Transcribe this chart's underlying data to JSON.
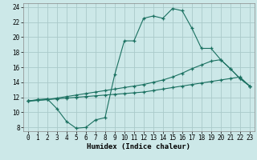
{
  "xlabel": "Humidex (Indice chaleur)",
  "bg_color": "#cce8e8",
  "grid_color": "#aacaca",
  "line_color": "#1a7060",
  "xlim": [
    -0.5,
    23.5
  ],
  "ylim": [
    7.5,
    24.5
  ],
  "xticks": [
    0,
    1,
    2,
    3,
    4,
    5,
    6,
    7,
    8,
    9,
    10,
    11,
    12,
    13,
    14,
    15,
    16,
    17,
    18,
    19,
    20,
    21,
    22,
    23
  ],
  "yticks": [
    8,
    10,
    12,
    14,
    16,
    18,
    20,
    22,
    24
  ],
  "line1_x": [
    0,
    1,
    2,
    3,
    4,
    5,
    6,
    7,
    8,
    9,
    10,
    11,
    12,
    13,
    14,
    15,
    16,
    17,
    18,
    19,
    20,
    21,
    22,
    23
  ],
  "line1_y": [
    11.5,
    11.7,
    11.8,
    10.5,
    8.8,
    7.9,
    8.0,
    9.0,
    9.3,
    15.0,
    19.5,
    19.5,
    22.5,
    22.8,
    22.5,
    23.8,
    23.5,
    21.2,
    18.5,
    18.5,
    17.0,
    15.8,
    14.5,
    13.5
  ],
  "line2_x": [
    0,
    1,
    2,
    3,
    4,
    5,
    6,
    7,
    8,
    9,
    10,
    11,
    12,
    13,
    14,
    15,
    16,
    17,
    18,
    19,
    20,
    21,
    22,
    23
  ],
  "line2_y": [
    11.5,
    11.6,
    11.7,
    11.8,
    11.9,
    12.0,
    12.1,
    12.2,
    12.3,
    12.4,
    12.5,
    12.6,
    12.7,
    12.9,
    13.1,
    13.3,
    13.5,
    13.7,
    13.9,
    14.1,
    14.3,
    14.5,
    14.7,
    13.5
  ],
  "line3_x": [
    0,
    1,
    2,
    3,
    4,
    5,
    6,
    7,
    8,
    9,
    10,
    11,
    12,
    13,
    14,
    15,
    16,
    17,
    18,
    19,
    20,
    21,
    22,
    23
  ],
  "line3_y": [
    11.5,
    11.6,
    11.7,
    11.9,
    12.1,
    12.3,
    12.5,
    12.7,
    12.9,
    13.1,
    13.3,
    13.5,
    13.7,
    14.0,
    14.3,
    14.7,
    15.2,
    15.8,
    16.3,
    16.8,
    17.0,
    15.8,
    14.5,
    13.5
  ],
  "tick_fontsize": 5.5,
  "xlabel_fontsize": 6.5
}
